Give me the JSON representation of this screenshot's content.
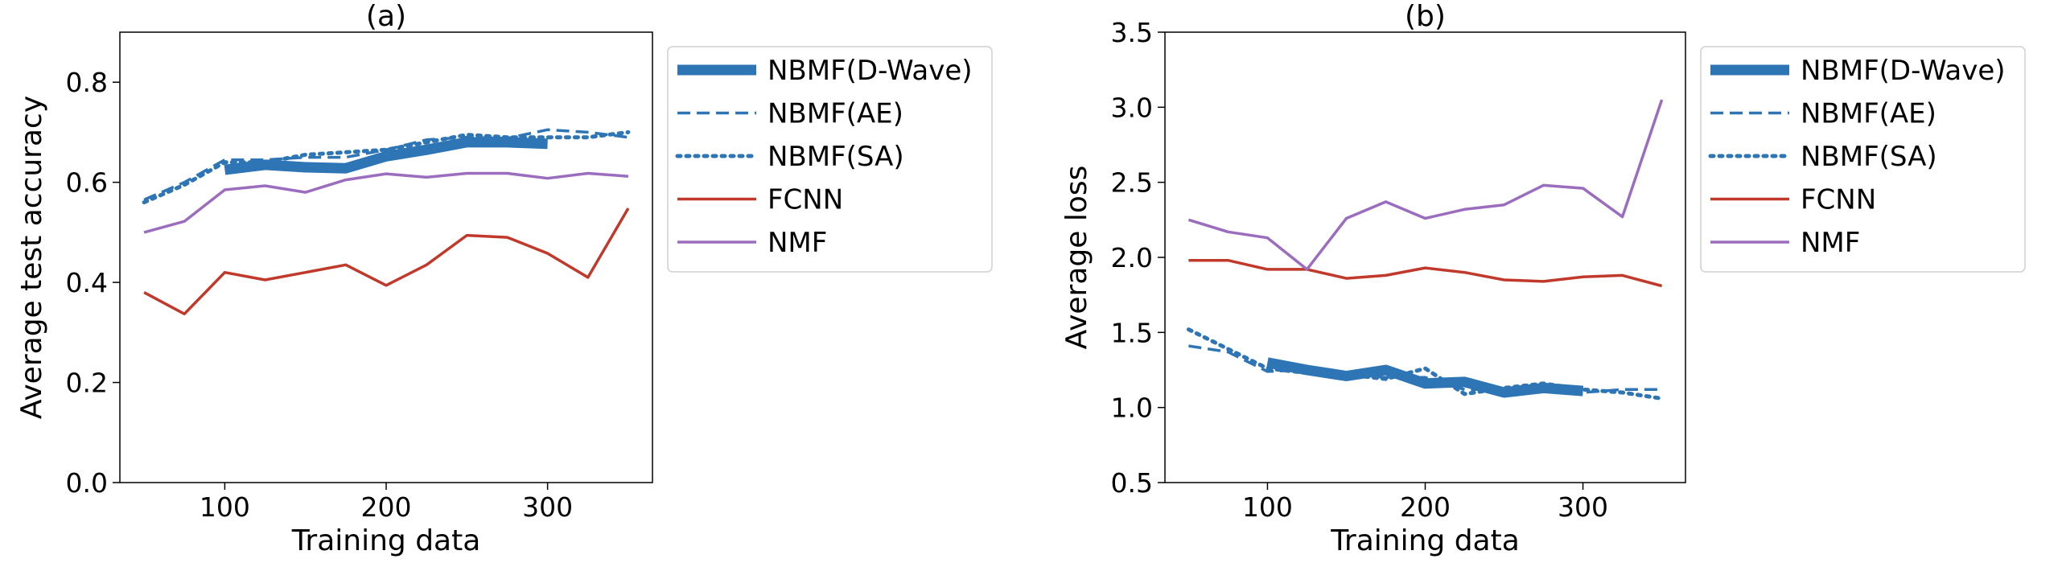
{
  "chart_data": [
    {
      "type": "line",
      "title": "(a)",
      "xlabel": "Training data",
      "ylabel": "Average test accuracy",
      "xlim": [
        35,
        365
      ],
      "ylim": [
        0.0,
        0.9
      ],
      "xticks": [
        100,
        200,
        300
      ],
      "yticks": [
        0.0,
        0.2,
        0.4,
        0.6,
        0.8
      ],
      "ytick_decimals": 1,
      "legend_position": "outside-right",
      "grid": false,
      "series": [
        {
          "name": "NBMF(D-Wave)",
          "color": "#2e75b6",
          "style": "solid",
          "width": 13,
          "x": [
            100,
            125,
            150,
            175,
            200,
            225,
            250,
            275,
            300
          ],
          "y": [
            0.625,
            0.635,
            0.63,
            0.628,
            0.652,
            0.665,
            0.68,
            0.68,
            0.677
          ]
        },
        {
          "name": "NBMF(AE)",
          "color": "#2e75b6",
          "style": "dashed",
          "width": 3.5,
          "x": [
            50,
            75,
            100,
            125,
            150,
            175,
            200,
            225,
            250,
            275,
            300,
            325,
            350
          ],
          "y": [
            0.565,
            0.6,
            0.645,
            0.645,
            0.65,
            0.65,
            0.665,
            0.685,
            0.69,
            0.688,
            0.705,
            0.7,
            0.69
          ]
        },
        {
          "name": "NBMF(SA)",
          "color": "#2e75b6",
          "style": "dotted",
          "width": 5,
          "x": [
            50,
            75,
            100,
            125,
            150,
            175,
            200,
            225,
            250,
            275,
            300,
            325,
            350
          ],
          "y": [
            0.56,
            0.595,
            0.64,
            0.64,
            0.655,
            0.66,
            0.665,
            0.68,
            0.695,
            0.69,
            0.69,
            0.69,
            0.7
          ]
        },
        {
          "name": "FCNN",
          "color": "#c0392b",
          "style": "solid",
          "width": 3.5,
          "x": [
            50,
            75,
            100,
            125,
            150,
            175,
            200,
            225,
            250,
            275,
            300,
            325,
            350
          ],
          "y": [
            0.38,
            0.337,
            0.42,
            0.405,
            0.42,
            0.435,
            0.394,
            0.435,
            0.494,
            0.49,
            0.458,
            0.41,
            0.548
          ]
        },
        {
          "name": "NMF",
          "color": "#9b6dbf",
          "style": "solid",
          "width": 3.5,
          "x": [
            50,
            75,
            100,
            125,
            150,
            175,
            200,
            225,
            250,
            275,
            300,
            325,
            350
          ],
          "y": [
            0.5,
            0.522,
            0.585,
            0.593,
            0.58,
            0.605,
            0.617,
            0.61,
            0.618,
            0.618,
            0.608,
            0.618,
            0.612
          ]
        }
      ]
    },
    {
      "type": "line",
      "title": "(b)",
      "xlabel": "Training data",
      "ylabel": "Average loss",
      "xlim": [
        35,
        365
      ],
      "ylim": [
        0.5,
        3.5
      ],
      "xticks": [
        100,
        200,
        300
      ],
      "yticks": [
        0.5,
        1.0,
        1.5,
        2.0,
        2.5,
        3.0,
        3.5
      ],
      "ytick_decimals": 1,
      "legend_position": "outside-right",
      "grid": false,
      "series": [
        {
          "name": "NBMF(D-Wave)",
          "color": "#2e75b6",
          "style": "solid",
          "width": 13,
          "x": [
            100,
            125,
            150,
            175,
            200,
            225,
            250,
            275,
            300
          ],
          "y": [
            1.3,
            1.25,
            1.21,
            1.25,
            1.16,
            1.17,
            1.1,
            1.13,
            1.11
          ]
        },
        {
          "name": "NBMF(AE)",
          "color": "#2e75b6",
          "style": "dashed",
          "width": 3.5,
          "x": [
            50,
            75,
            100,
            125,
            150,
            175,
            200,
            225,
            250,
            275,
            300,
            325,
            350
          ],
          "y": [
            1.41,
            1.37,
            1.24,
            1.25,
            1.22,
            1.2,
            1.2,
            1.12,
            1.12,
            1.13,
            1.1,
            1.12,
            1.12
          ]
        },
        {
          "name": "NBMF(SA)",
          "color": "#2e75b6",
          "style": "dotted",
          "width": 5,
          "x": [
            50,
            75,
            100,
            125,
            150,
            175,
            200,
            225,
            250,
            275,
            300,
            325,
            350
          ],
          "y": [
            1.52,
            1.39,
            1.26,
            1.23,
            1.22,
            1.19,
            1.26,
            1.09,
            1.13,
            1.16,
            1.12,
            1.1,
            1.06
          ]
        },
        {
          "name": "FCNN",
          "color": "#c0392b",
          "style": "solid",
          "width": 3.5,
          "x": [
            50,
            75,
            100,
            125,
            150,
            175,
            200,
            225,
            250,
            275,
            300,
            325,
            350
          ],
          "y": [
            1.98,
            1.98,
            1.92,
            1.92,
            1.86,
            1.88,
            1.93,
            1.9,
            1.85,
            1.84,
            1.87,
            1.88,
            1.81
          ]
        },
        {
          "name": "NMF",
          "color": "#9b6dbf",
          "style": "solid",
          "width": 3.5,
          "x": [
            50,
            75,
            100,
            125,
            150,
            175,
            200,
            225,
            250,
            275,
            300,
            325,
            350
          ],
          "y": [
            2.25,
            2.17,
            2.13,
            1.92,
            2.26,
            2.37,
            2.26,
            2.32,
            2.35,
            2.48,
            2.46,
            2.27,
            3.05
          ]
        }
      ]
    }
  ]
}
